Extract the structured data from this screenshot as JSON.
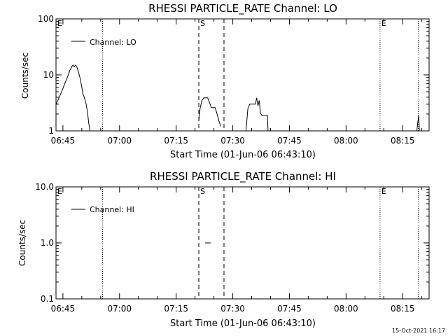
{
  "footer": {
    "timestamp": "15-Oct-2021 16:17"
  },
  "chart_data": [
    {
      "type": "line",
      "title": "RHESSI PARTICLE_RATE Channel: LO",
      "xlabel": "Start Time (01-Jun-06 06:43:10)",
      "ylabel": "Counts/sec",
      "y_scale": "log",
      "xlim": [
        "06:43:10",
        "08:22:00"
      ],
      "ylim": [
        1,
        100
      ],
      "x_ticks": [
        "06:45",
        "07:00",
        "07:15",
        "07:30",
        "07:45",
        "08:00",
        "08:15"
      ],
      "y_ticks": [
        {
          "value": 1,
          "label": "1"
        },
        {
          "value": 10,
          "label": "10"
        },
        {
          "value": 100,
          "label": "100"
        }
      ],
      "legend": {
        "position": "top-left",
        "entries": [
          "Channel: LO"
        ]
      },
      "markers": [
        {
          "time": "06:43:10",
          "style": "none",
          "label": "E"
        },
        {
          "time": "06:55:30",
          "style": "dotted",
          "label": ""
        },
        {
          "time": "07:21:00",
          "style": "dashed",
          "label": "S"
        },
        {
          "time": "07:27:40",
          "style": "dashed",
          "label": ""
        },
        {
          "time": "08:09:00",
          "style": "dotted",
          "label": "E"
        },
        {
          "time": "08:19:10",
          "style": "dotted",
          "label": ""
        }
      ],
      "series": [
        {
          "name": "Channel: LO",
          "segments": [
            {
              "x": [
                "06:43:10",
                "06:43:40",
                "06:44:10",
                "06:44:50",
                "06:45:30",
                "06:46:10",
                "06:46:50",
                "06:47:20",
                "06:47:40",
                "06:48:00",
                "06:48:20",
                "06:48:40",
                "06:49:00",
                "06:49:30",
                "06:50:00",
                "06:50:20",
                "06:50:40",
                "06:51:10",
                "06:51:30",
                "06:51:50",
                "06:52:10"
              ],
              "y": [
                3.0,
                3.5,
                4.2,
                5.4,
                7.0,
                9.0,
                12.0,
                14.0,
                15.0,
                14.0,
                15.0,
                14.0,
                12.0,
                9.0,
                6.0,
                4.5,
                4.0,
                3.0,
                2.2,
                1.4,
                1.0
              ]
            },
            {
              "x": [
                "07:21:00",
                "07:21:20",
                "07:21:50",
                "07:22:20",
                "07:22:50",
                "07:23:20",
                "07:23:50",
                "07:24:20",
                "07:24:50",
                "07:25:20",
                "07:25:50",
                "07:26:20",
                "07:26:50"
              ],
              "y": [
                1.5,
                2.5,
                3.5,
                3.9,
                3.9,
                3.9,
                3.2,
                2.6,
                2.6,
                2.6,
                2.0,
                1.5,
                1.2
              ]
            },
            {
              "x": [
                "07:33:30",
                "07:34:00",
                "07:34:30",
                "07:35:00",
                "07:35:30",
                "07:36:00",
                "07:36:20",
                "07:36:40",
                "07:37:00",
                "07:37:20",
                "07:37:40",
                "07:38:10",
                "07:38:40",
                "07:39:10",
                "07:39:20"
              ],
              "y": [
                1.0,
                2.5,
                3.0,
                3.0,
                3.0,
                3.0,
                3.9,
                2.8,
                3.5,
                2.1,
                1.9,
                1.9,
                1.9,
                1.9,
                1.0
              ]
            },
            {
              "x": [
                "08:18:45",
                "08:19:00",
                "08:19:15",
                "08:19:25"
              ],
              "y": [
                1.0,
                1.4,
                1.9,
                1.0
              ]
            }
          ]
        }
      ]
    },
    {
      "type": "line",
      "title": "RHESSI PARTICLE_RATE Channel: HI",
      "xlabel": "Start Time (01-Jun-06 06:43:10)",
      "ylabel": "Counts/sec",
      "y_scale": "log",
      "xlim": [
        "06:43:10",
        "08:22:00"
      ],
      "ylim": [
        0.1,
        10
      ],
      "x_ticks": [
        "06:45",
        "07:00",
        "07:15",
        "07:30",
        "07:45",
        "08:00",
        "08:15"
      ],
      "y_ticks": [
        {
          "value": 0.1,
          "label": "0.1"
        },
        {
          "value": 1,
          "label": "1.0"
        },
        {
          "value": 10,
          "label": "10.0"
        }
      ],
      "legend": {
        "position": "top-left",
        "entries": [
          "Channel: HI"
        ]
      },
      "markers": [
        {
          "time": "06:43:10",
          "style": "none",
          "label": "E"
        },
        {
          "time": "06:55:30",
          "style": "dotted",
          "label": ""
        },
        {
          "time": "07:21:00",
          "style": "dashed",
          "label": "S"
        },
        {
          "time": "07:27:40",
          "style": "dashed",
          "label": ""
        },
        {
          "time": "08:09:00",
          "style": "dotted",
          "label": "E"
        },
        {
          "time": "08:19:10",
          "style": "dotted",
          "label": ""
        }
      ],
      "series": [
        {
          "name": "Channel: HI",
          "segments": [
            {
              "x": [
                "07:22:40",
                "07:24:10"
              ],
              "y": [
                1.0,
                1.0
              ]
            }
          ]
        }
      ]
    }
  ]
}
